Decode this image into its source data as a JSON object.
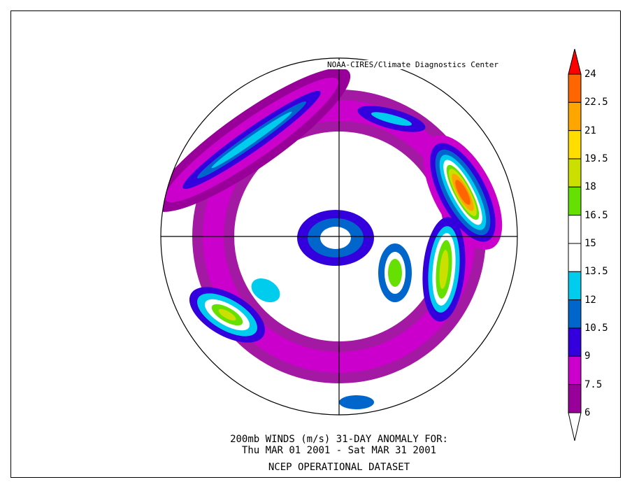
{
  "credit": "NOAA-CIRES/Climate Diagnostics Center",
  "title": {
    "line1": "200mb WINDS (m/s)   31-DAY ANOMALY FOR:",
    "line2": "Thu MAR 01 2001 - Sat MAR 31 2001",
    "line3": "NCEP OPERATIONAL DATASET"
  },
  "colorbar": {
    "levels": [
      "24",
      "22.5",
      "21",
      "19.5",
      "18",
      "16.5",
      "15",
      "13.5",
      "12",
      "10.5",
      "9",
      "7.5",
      "6"
    ],
    "colors": [
      "#ff0000",
      "#ff6600",
      "#ffa500",
      "#ffdd00",
      "#cce000",
      "#66e000",
      "#ffffff",
      "#ffffff",
      "#00ccee",
      "#0066cc",
      "#3300dd",
      "#cc00cc",
      "#990099",
      "#ffffff"
    ]
  },
  "map": {
    "projection": "north-polar-stereographic"
  }
}
